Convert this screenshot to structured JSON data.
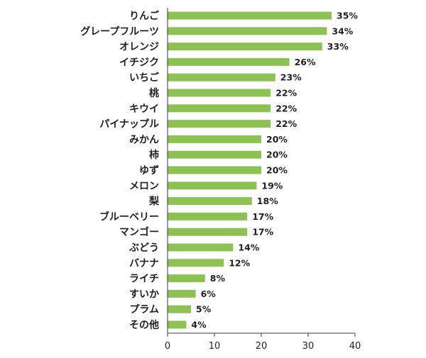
{
  "chart_data": {
    "type": "bar",
    "orientation": "horizontal",
    "title": "",
    "xlabel": "",
    "ylabel": "",
    "categories": [
      "りんご",
      "グレープフルーツ",
      "オレンジ",
      "イチジク",
      "いちご",
      "桃",
      "キウイ",
      "パイナップル",
      "みかん",
      "柿",
      "ゆず",
      "メロン",
      "梨",
      "ブルーベリー",
      "マンゴー",
      "ぶどう",
      "バナナ",
      "ライチ",
      "すいか",
      "プラム",
      "その他"
    ],
    "values": [
      35,
      34,
      33,
      26,
      23,
      22,
      22,
      22,
      20,
      20,
      20,
      19,
      18,
      17,
      17,
      14,
      12,
      8,
      6,
      5,
      4
    ],
    "value_labels": [
      "35%",
      "34%",
      "33%",
      "26%",
      "23%",
      "22%",
      "22%",
      "22%",
      "20%",
      "20%",
      "20%",
      "19%",
      "18%",
      "17%",
      "17%",
      "14%",
      "12%",
      "8%",
      "6%",
      "5%",
      "4%"
    ],
    "xlim": [
      0,
      40
    ],
    "xticks": [
      "0",
      "10",
      "20",
      "30",
      "40"
    ],
    "grid": false,
    "legend": "none",
    "bar_color": "#8dc153",
    "axis_color": "#3a3a3a"
  }
}
